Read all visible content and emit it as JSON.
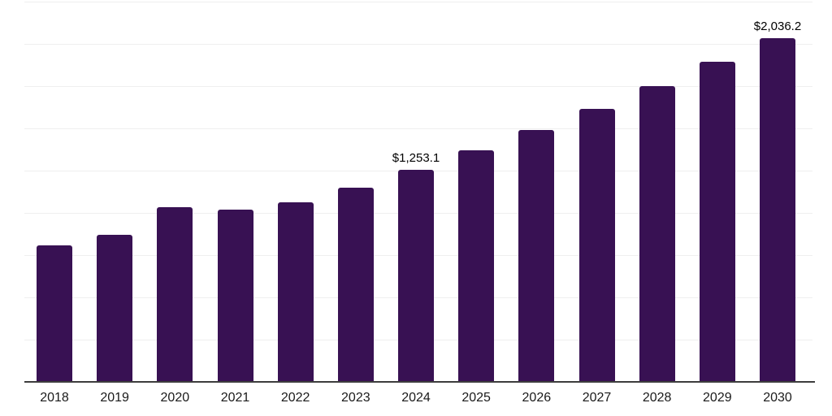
{
  "chart_data": {
    "type": "bar",
    "title": "",
    "xlabel": "",
    "ylabel": "",
    "categories": [
      "2018",
      "2019",
      "2020",
      "2021",
      "2022",
      "2023",
      "2024",
      "2025",
      "2026",
      "2027",
      "2028",
      "2029",
      "2030"
    ],
    "values": [
      807,
      871,
      1036,
      1021,
      1062,
      1150,
      1253.1,
      1370,
      1490,
      1615,
      1751,
      1895,
      2036.2
    ],
    "data_labels": {
      "2024": "$1,253.1",
      "2030": "$2,036.2"
    },
    "ylim": [
      0,
      2250
    ],
    "gridline_interval": 250,
    "grid": "on",
    "legend": "none",
    "y_axis_tick_labels_visible": false,
    "bar_color": "#381153",
    "grid_color": "#efefef",
    "axis_color": "#3d3d3d",
    "value_label_color": "#000000",
    "tick_label_color": "#1a1a1a"
  }
}
